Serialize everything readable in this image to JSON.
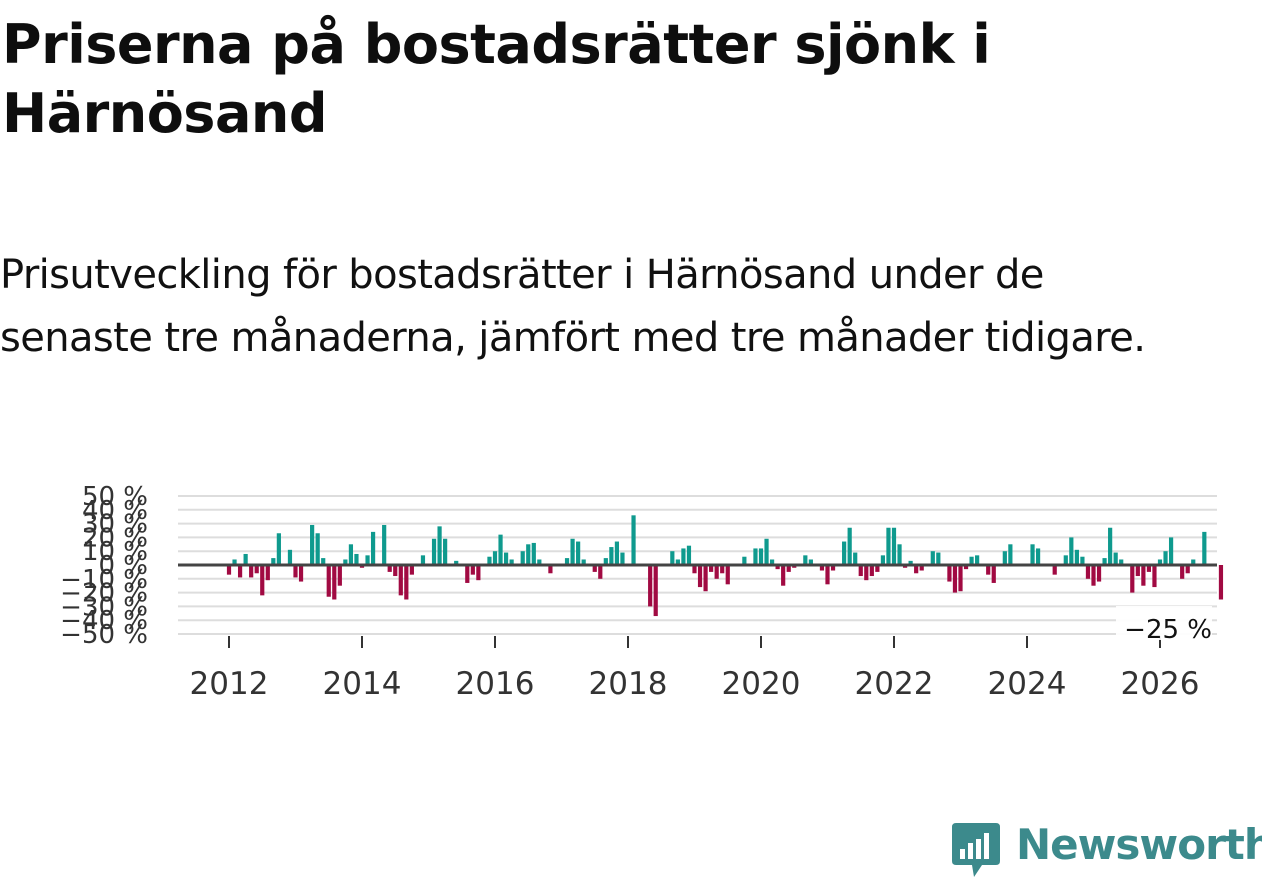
{
  "title": "Priserna på bostadsrätter sjönk i Härnösand",
  "subtitle": "Prisutveckling för bostadsrätter i Härnösand under de senaste tre månaderna, jämfört med tre månader tidigare.",
  "brand": {
    "name": "Newsworthy",
    "color": "#3c8a8c"
  },
  "colors": {
    "positive": "#0f9a8e",
    "negative": "#a10a42",
    "grid": "#dddddd",
    "zero_line": "#444444"
  },
  "chart_data": {
    "type": "bar",
    "title": "Priserna på bostadsrätter sjönk i Härnösand",
    "xlabel": "",
    "ylabel": "",
    "unit": "%",
    "ylim": [
      -50,
      50
    ],
    "y_ticks": [
      50,
      40,
      30,
      20,
      10,
      0,
      -10,
      -20,
      -30,
      -40,
      -50
    ],
    "y_tick_labels": [
      "50 %",
      "40 %",
      "30 %",
      "20 %",
      "10 %",
      "0 %",
      "−10 %",
      "−20 %",
      "−30 %",
      "−40 %",
      "−50 %"
    ],
    "x_ticks": [
      2012,
      2014,
      2016,
      2018,
      2020,
      2022,
      2024,
      2026
    ],
    "x_tick_labels": [
      "2012",
      "2014",
      "2016",
      "2018",
      "2020",
      "2022",
      "2024",
      "2026"
    ],
    "start": {
      "year": 2012,
      "month": 1
    },
    "values": [
      -7,
      4,
      -9,
      8,
      -9,
      -6,
      -22,
      -11,
      5,
      23,
      0,
      11,
      -9,
      -12,
      0,
      29,
      23,
      5,
      -23,
      -25,
      -15,
      4,
      15,
      8,
      -2,
      7,
      24,
      0,
      29,
      -5,
      -8,
      -22,
      -25,
      -7,
      0,
      7,
      0,
      19,
      28,
      19,
      0,
      3,
      0,
      -13,
      -7,
      -11,
      0,
      6,
      10,
      22,
      9,
      4,
      0,
      10,
      15,
      16,
      4,
      0,
      -6,
      0,
      0,
      5,
      19,
      17,
      4,
      0,
      -5,
      -10,
      5,
      13,
      17,
      9,
      0,
      36,
      0,
      0,
      -30,
      -37,
      0,
      0,
      10,
      4,
      12,
      14,
      -6,
      -16,
      -19,
      -5,
      -10,
      -6,
      -14,
      0,
      0,
      6,
      0,
      12,
      12,
      19,
      4,
      -3,
      -15,
      -5,
      -2,
      0,
      7,
      4,
      0,
      -4,
      -14,
      -4,
      0,
      17,
      27,
      9,
      -8,
      -11,
      -8,
      -5,
      7,
      27,
      27,
      15,
      -2,
      3,
      -6,
      -4,
      0,
      10,
      9,
      0,
      -12,
      -20,
      -19,
      -3,
      6,
      7,
      0,
      -7,
      -13,
      0,
      10,
      15,
      0,
      0,
      0,
      15,
      12,
      0,
      0,
      -7,
      0,
      7,
      20,
      11,
      6,
      -10,
      -15,
      -12,
      5,
      27,
      9,
      4,
      0,
      -20,
      -8,
      -15,
      -5,
      -16,
      4,
      10,
      20,
      0,
      -10,
      -6,
      4,
      0,
      24,
      0,
      0,
      -25
    ],
    "last_value_label": "−25 %"
  }
}
